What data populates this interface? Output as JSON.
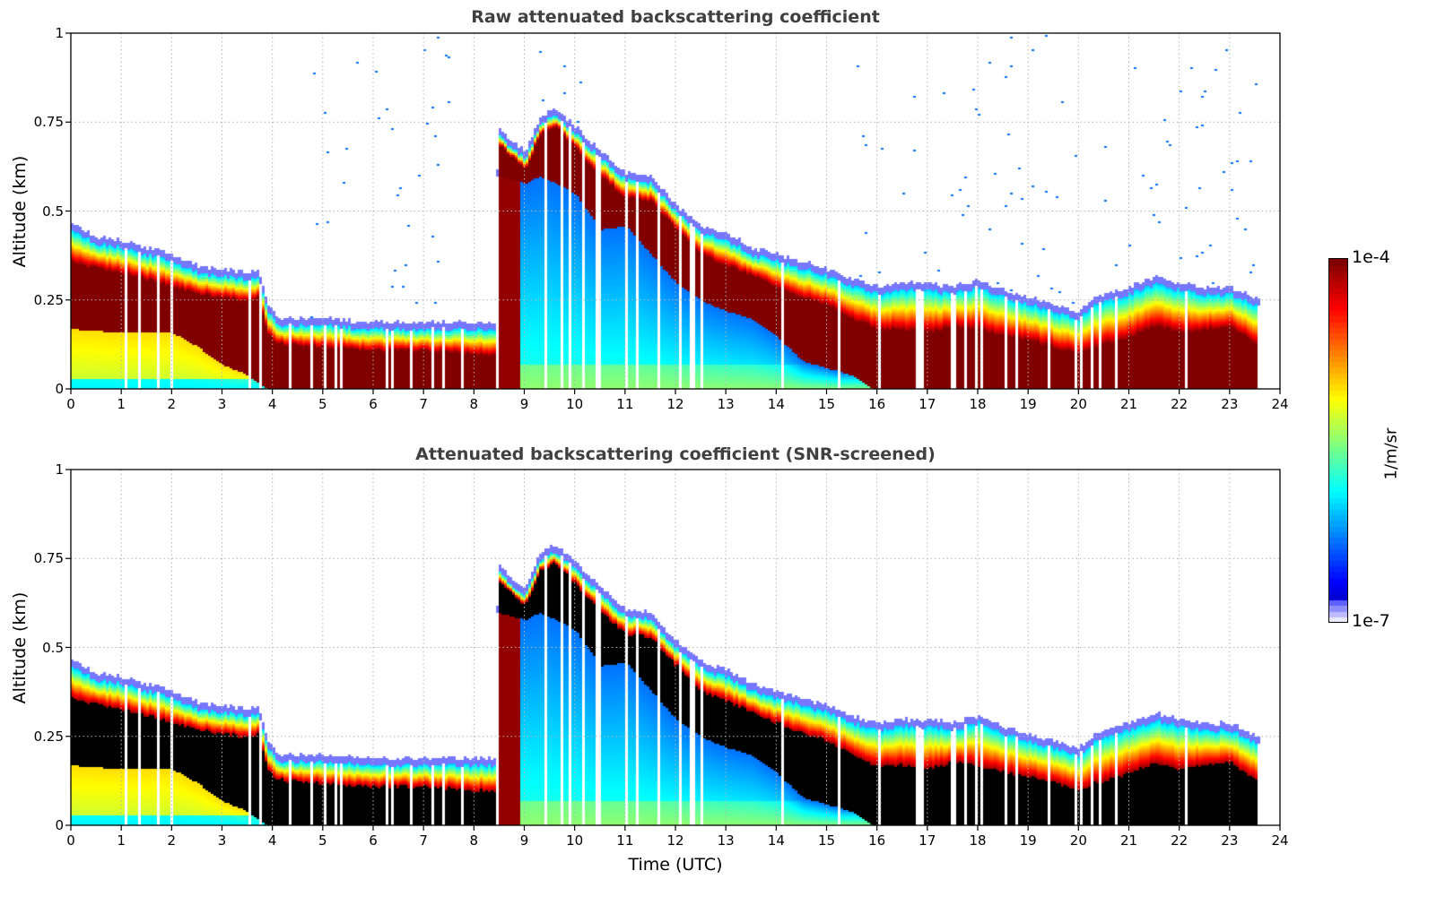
{
  "chart_data": [
    {
      "type": "heatmap",
      "title": "Raw attenuated backscattering coefficient",
      "xlabel": "",
      "ylabel": "Altitude (km)",
      "xlim": [
        0,
        24
      ],
      "ylim": [
        0,
        1
      ],
      "xticks": [
        "0",
        "1",
        "2",
        "3",
        "4",
        "5",
        "6",
        "7",
        "8",
        "9",
        "10",
        "11",
        "12",
        "13",
        "14",
        "15",
        "16",
        "17",
        "18",
        "19",
        "20",
        "21",
        "22",
        "23",
        "24"
      ],
      "yticks": [
        "0",
        "0.25",
        "0.5",
        "0.75",
        "1"
      ],
      "grid": true,
      "screened": false,
      "data_end_hour": 23.6
    },
    {
      "type": "heatmap",
      "title": "Attenuated backscattering coefficient (SNR-screened)",
      "xlabel": "Time (UTC)",
      "ylabel": "Altitude (km)",
      "xlim": [
        0,
        24
      ],
      "ylim": [
        0,
        1
      ],
      "xticks": [
        "0",
        "1",
        "2",
        "3",
        "4",
        "5",
        "6",
        "7",
        "8",
        "9",
        "10",
        "11",
        "12",
        "13",
        "14",
        "15",
        "16",
        "17",
        "18",
        "19",
        "20",
        "21",
        "22",
        "23",
        "24"
      ],
      "yticks": [
        "0",
        "0.25",
        "0.5",
        "0.75",
        "1"
      ],
      "grid": true,
      "screened": true,
      "data_end_hour": 23.6
    }
  ],
  "layers": {
    "boundary_layer_top_km": [
      [
        0,
        0.45
      ],
      [
        0.5,
        0.41
      ],
      [
        1,
        0.4
      ],
      [
        1.5,
        0.38
      ],
      [
        2,
        0.36
      ],
      [
        2.5,
        0.33
      ],
      [
        3,
        0.32
      ],
      [
        3.5,
        0.31
      ],
      [
        3.7,
        0.32
      ],
      [
        3.9,
        0.22
      ],
      [
        4.1,
        0.18
      ],
      [
        5,
        0.18
      ],
      [
        6,
        0.17
      ],
      [
        7,
        0.17
      ],
      [
        8,
        0.17
      ],
      [
        8.4,
        0.17
      ],
      [
        8.45,
        0.72
      ],
      [
        8.7,
        0.68
      ],
      [
        9.0,
        0.65
      ],
      [
        9.3,
        0.75
      ],
      [
        9.6,
        0.77
      ],
      [
        10,
        0.72
      ],
      [
        10.5,
        0.65
      ],
      [
        11,
        0.59
      ],
      [
        11.5,
        0.58
      ],
      [
        12,
        0.5
      ],
      [
        12.5,
        0.44
      ],
      [
        13,
        0.42
      ],
      [
        13.5,
        0.38
      ],
      [
        14,
        0.36
      ],
      [
        14.5,
        0.34
      ],
      [
        15,
        0.32
      ],
      [
        15.5,
        0.29
      ],
      [
        16,
        0.27
      ],
      [
        16.5,
        0.28
      ],
      [
        17,
        0.28
      ],
      [
        17.5,
        0.27
      ],
      [
        18,
        0.29
      ],
      [
        18.5,
        0.26
      ],
      [
        19,
        0.24
      ],
      [
        19.5,
        0.22
      ],
      [
        20,
        0.2
      ],
      [
        20.3,
        0.24
      ],
      [
        21,
        0.27
      ],
      [
        21.5,
        0.3
      ],
      [
        22,
        0.28
      ],
      [
        22.5,
        0.27
      ],
      [
        23,
        0.27
      ],
      [
        23.6,
        0.23
      ]
    ],
    "dense_layer_top_km": [
      [
        0,
        0.36
      ],
      [
        0.5,
        0.34
      ],
      [
        1,
        0.33
      ],
      [
        1.5,
        0.31
      ],
      [
        2,
        0.29
      ],
      [
        2.5,
        0.27
      ],
      [
        3,
        0.26
      ],
      [
        3.5,
        0.25
      ],
      [
        3.7,
        0.26
      ],
      [
        3.9,
        0.15
      ],
      [
        4.1,
        0.13
      ],
      [
        5,
        0.12
      ],
      [
        6,
        0.11
      ],
      [
        7,
        0.11
      ],
      [
        8,
        0.1
      ],
      [
        8.4,
        0.1
      ],
      [
        8.45,
        0.69
      ],
      [
        8.7,
        0.66
      ],
      [
        9.0,
        0.62
      ],
      [
        9.3,
        0.72
      ],
      [
        9.6,
        0.74
      ],
      [
        10,
        0.68
      ],
      [
        10.5,
        0.6
      ],
      [
        11,
        0.54
      ],
      [
        11.5,
        0.53
      ],
      [
        12,
        0.45
      ],
      [
        12.5,
        0.38
      ],
      [
        13,
        0.35
      ],
      [
        13.5,
        0.32
      ],
      [
        14,
        0.29
      ],
      [
        14.5,
        0.26
      ],
      [
        15,
        0.24
      ],
      [
        15.5,
        0.2
      ],
      [
        16,
        0.17
      ],
      [
        16.5,
        0.17
      ],
      [
        17,
        0.16
      ],
      [
        17.5,
        0.18
      ],
      [
        18,
        0.17
      ],
      [
        18.5,
        0.15
      ],
      [
        19,
        0.14
      ],
      [
        19.5,
        0.12
      ],
      [
        20,
        0.1
      ],
      [
        20.3,
        0.12
      ],
      [
        21,
        0.15
      ],
      [
        21.5,
        0.18
      ],
      [
        22,
        0.16
      ],
      [
        22.5,
        0.17
      ],
      [
        23,
        0.18
      ],
      [
        23.6,
        0.12
      ]
    ],
    "dense_layer_base_km": [
      [
        0,
        0.17
      ],
      [
        1,
        0.16
      ],
      [
        2,
        0.16
      ],
      [
        2.5,
        0.12
      ],
      [
        3,
        0.07
      ],
      [
        3.5,
        0.04
      ],
      [
        3.9,
        0.0
      ],
      [
        8.4,
        0.0
      ],
      [
        8.45,
        0.6
      ],
      [
        9.0,
        0.58
      ],
      [
        9.3,
        0.6
      ],
      [
        9.6,
        0.58
      ],
      [
        10,
        0.55
      ],
      [
        10.5,
        0.45
      ],
      [
        11,
        0.46
      ],
      [
        11.5,
        0.38
      ],
      [
        12,
        0.3
      ],
      [
        12.5,
        0.25
      ],
      [
        13,
        0.22
      ],
      [
        13.5,
        0.2
      ],
      [
        14,
        0.15
      ],
      [
        14.5,
        0.08
      ],
      [
        15,
        0.06
      ],
      [
        15.5,
        0.04
      ],
      [
        15.9,
        0.0
      ],
      [
        24,
        0.0
      ]
    ]
  },
  "colorbar": {
    "label": "1/m/sr",
    "max_label": "1e-4",
    "min_label": "1e-7",
    "scale": "log",
    "range": [
      1e-07,
      0.0001
    ]
  }
}
